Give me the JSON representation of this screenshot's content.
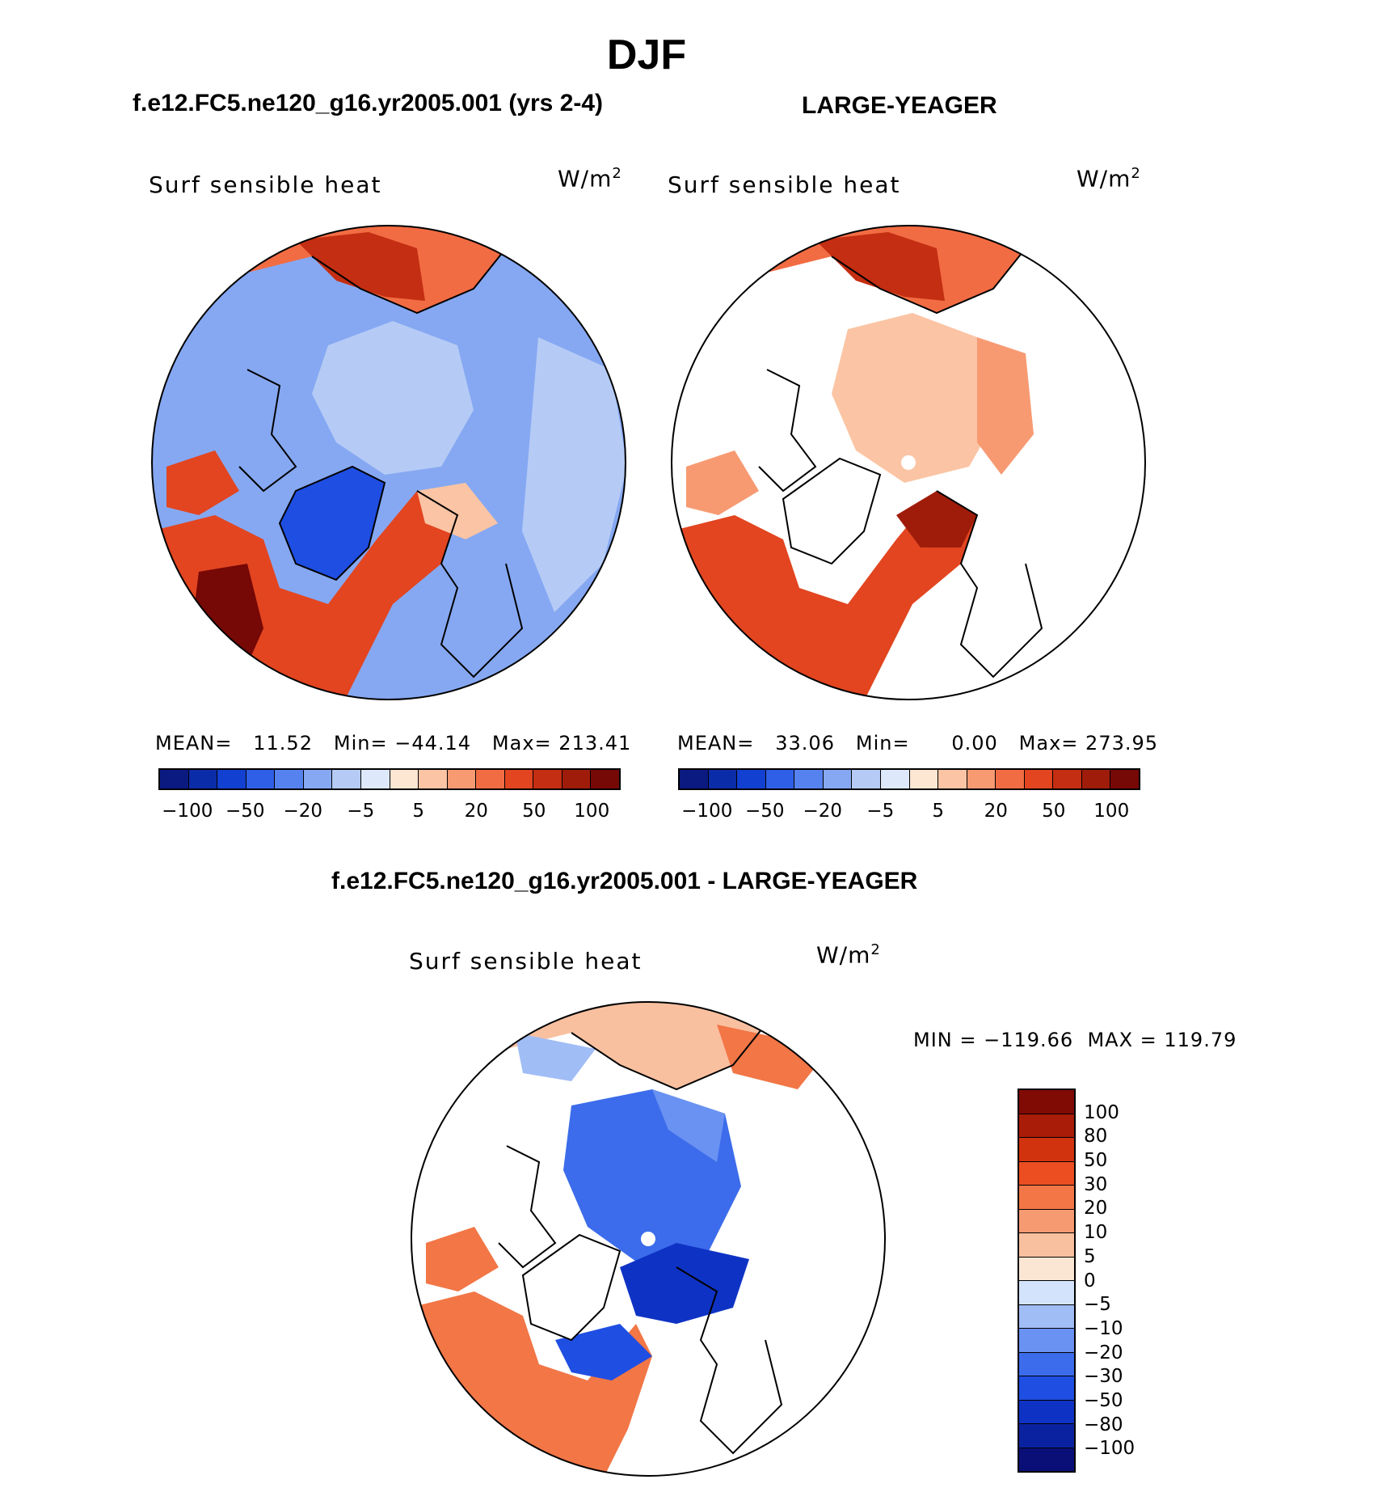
{
  "figure": {
    "title": "DJF"
  },
  "panels": [
    {
      "id": "model",
      "header": "f.e12.FC5.ne120_g16.yr2005.001 (yrs 2-4)",
      "variable_label": "Surf sensible heat",
      "units_base": "W/m",
      "units_exp": "2",
      "stats": {
        "mean_label": "MEAN=",
        "mean": "11.52",
        "min_label": "Min=",
        "min": "−44.14",
        "max_label": "Max=",
        "max": "213.41"
      },
      "colorbar_ticks": [
        "−100",
        "−50",
        "−20",
        "−5",
        "5",
        "20",
        "50",
        "100"
      ]
    },
    {
      "id": "obs",
      "header": "LARGE-YEAGER",
      "variable_label": "Surf sensible heat",
      "units_base": "W/m",
      "units_exp": "2",
      "stats": {
        "mean_label": "MEAN=",
        "mean": "33.06",
        "min_label": "Min=",
        "min": "0.00",
        "max_label": "Max=",
        "max": "273.95"
      },
      "colorbar_ticks": [
        "−100",
        "−50",
        "−20",
        "−5",
        "5",
        "20",
        "50",
        "100"
      ]
    },
    {
      "id": "diff",
      "header": "f.e12.FC5.ne120_g16.yr2005.001 - LARGE-YEAGER",
      "variable_label": "Surf sensible heat",
      "units_base": "W/m",
      "units_exp": "2",
      "minmax": "MIN = −119.66  MAX = 119.79",
      "colorbar_ticks": [
        "100",
        "80",
        "50",
        "30",
        "20",
        "10",
        "5",
        "0",
        "−5",
        "−10",
        "−20",
        "−30",
        "−50",
        "−80",
        "−100"
      ]
    }
  ],
  "colors": {
    "abs_palette": [
      "#0a1a80",
      "#0b2ca8",
      "#1240d0",
      "#2f5fe6",
      "#5582ee",
      "#86a8f2",
      "#b5cbf6",
      "#dde9fa",
      "#fde6d2",
      "#fbc4a4",
      "#f79a72",
      "#f26c43",
      "#e24520",
      "#c42e12",
      "#a01c0a",
      "#760806"
    ],
    "diff_palette": [
      "#0a0f78",
      "#0b22a0",
      "#0e33c4",
      "#1f4ee2",
      "#3c6ceb",
      "#6a92f2",
      "#a1bdf6",
      "#d3e3fb",
      "#fbe6d4",
      "#f9c0a0",
      "#f69a72",
      "#f27646",
      "#ec4e22",
      "#d2330f",
      "#a91c08",
      "#800a04"
    ],
    "land_mask": "#ffffff",
    "coast": "#000000"
  }
}
